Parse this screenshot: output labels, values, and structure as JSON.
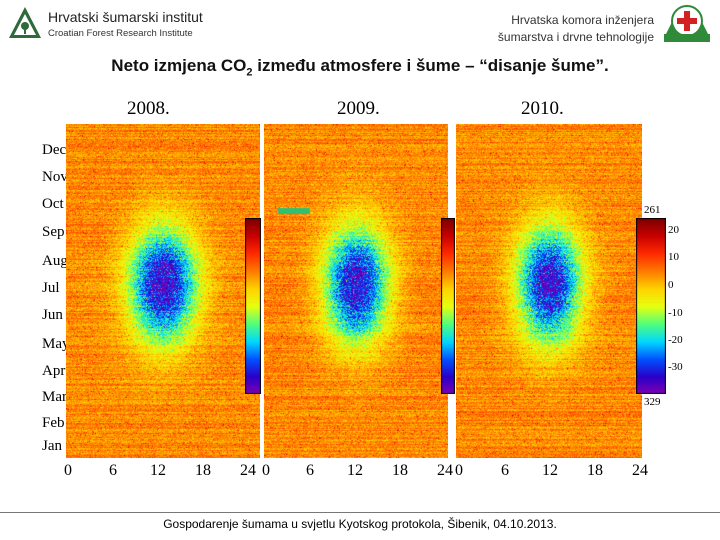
{
  "header": {
    "left_org_name": "Hrvatski šumarski institut",
    "left_org_subtitle": "Croatian Forest Research Institute",
    "right_org_line1": "Hrvatska komora inženjera",
    "right_org_line2": "šumarstva i drvne tehnologije"
  },
  "title": {
    "before": "Neto izmjena CO",
    "subscript": "2",
    "after": " između atmosfere i šume – “disanje šume”."
  },
  "chart_data": {
    "type": "heatmap",
    "panels": [
      {
        "year": "2008."
      },
      {
        "year": "2009."
      },
      {
        "year": "2010."
      }
    ],
    "y_tick_labels": [
      "Dec",
      "Nov",
      "Oct",
      "Sep",
      "Aug",
      "Jul",
      "Jun",
      "May",
      "Apr",
      "Mar",
      "Feb",
      "Jan"
    ],
    "x_tick_labels": [
      "0",
      "6",
      "12",
      "18",
      "24"
    ],
    "xlim": [
      0,
      24
    ],
    "colorbar": {
      "ticks": [
        "20",
        "10",
        "0",
        "-10",
        "-20",
        "-30"
      ],
      "range_labels": [
        "261",
        "329"
      ],
      "colormap": [
        "#7a0000",
        "#c80000",
        "#ff2a00",
        "#ff7a00",
        "#ffd200",
        "#e8ff10",
        "#52ff7a",
        "#00d8ff",
        "#0052ff",
        "#2a00c8",
        "#8000b0"
      ]
    },
    "colors": {
      "background": "#f0642a",
      "uptake_core": "#52d87a",
      "uptake_band": "#d8e81a",
      "dark_noise": "#b82818"
    }
  },
  "footer": {
    "text": "Gospodarenje šumama u svjetlu Kyotskog protokola, Šibenik, 04.10.2013."
  }
}
